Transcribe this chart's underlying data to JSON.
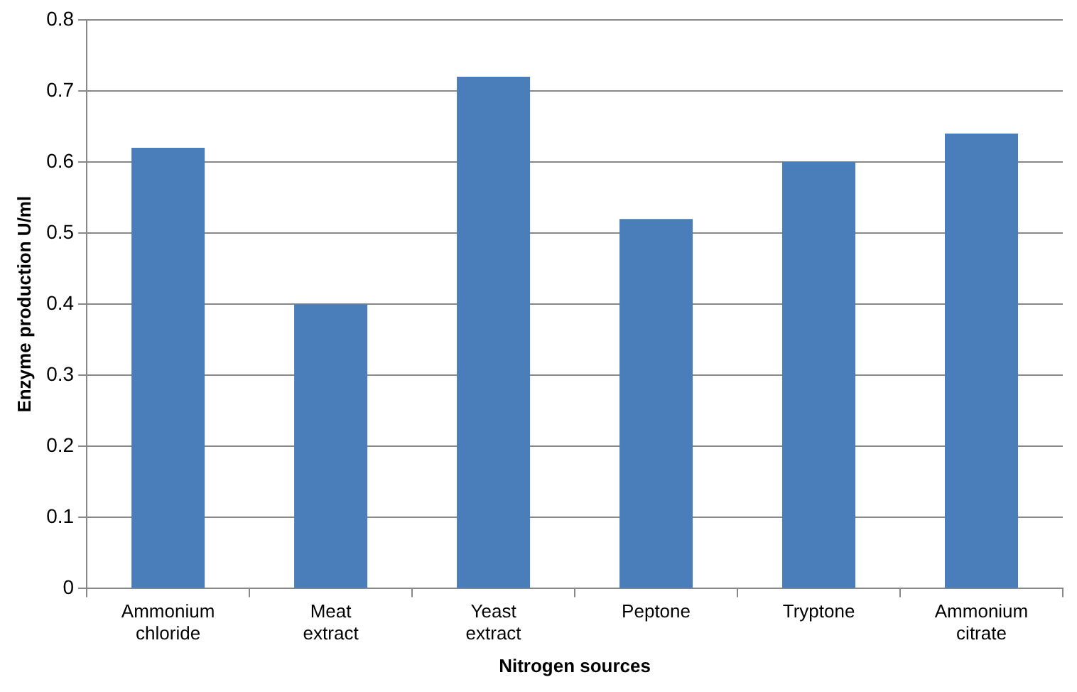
{
  "chart_data": {
    "type": "bar",
    "xlabel": "Nitrogen sources",
    "ylabel": "Enzyme production U/ml",
    "categories": [
      "Ammonium chloride",
      "Meat extract",
      "Yeast extract",
      "Peptone",
      "Tryptone",
      "Ammonium citrate"
    ],
    "values": [
      0.62,
      0.4,
      0.72,
      0.52,
      0.6,
      0.64
    ],
    "color": "#4a7ebb",
    "ylim": [
      0,
      0.8
    ],
    "yticks": [
      0,
      0.1,
      0.2,
      0.3,
      0.4,
      0.5,
      0.6,
      0.7,
      0.8
    ],
    "grid": "y",
    "legend": false
  }
}
